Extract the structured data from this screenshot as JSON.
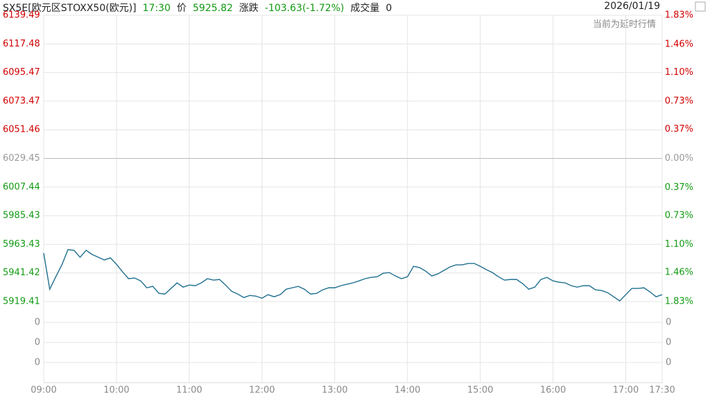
{
  "header": {
    "title": "SX5E[欧元区STOXX50(欧元)]",
    "time": "17:30",
    "price_label": "价",
    "price": "5925.82",
    "change_label": "涨跌",
    "change": "-103.63(-1.72%)",
    "volume_label": "成交量",
    "volume": "0",
    "date": "2026/01/19",
    "note": "当前为延时行情"
  },
  "chart_data": {
    "type": "line",
    "x": [
      "09:00",
      "09:05",
      "09:10",
      "09:15",
      "09:20",
      "09:25",
      "09:30",
      "09:35",
      "09:40",
      "09:45",
      "09:50",
      "09:55",
      "10:00",
      "10:05",
      "10:10",
      "10:15",
      "10:20",
      "10:25",
      "10:30",
      "10:35",
      "10:40",
      "10:45",
      "10:50",
      "10:55",
      "11:00",
      "11:05",
      "11:10",
      "11:15",
      "11:20",
      "11:25",
      "11:30",
      "11:35",
      "11:40",
      "11:45",
      "11:50",
      "11:55",
      "12:00",
      "12:05",
      "12:10",
      "12:15",
      "12:20",
      "12:25",
      "12:30",
      "12:35",
      "12:40",
      "12:45",
      "12:50",
      "12:55",
      "13:00",
      "13:05",
      "13:10",
      "13:15",
      "13:20",
      "13:25",
      "13:30",
      "13:35",
      "13:40",
      "13:45",
      "13:50",
      "13:55",
      "14:00",
      "14:05",
      "14:10",
      "14:15",
      "14:20",
      "14:25",
      "14:30",
      "14:35",
      "14:40",
      "14:45",
      "14:50",
      "14:55",
      "15:00",
      "15:05",
      "15:10",
      "15:15",
      "15:20",
      "15:25",
      "15:30",
      "15:35",
      "15:40",
      "15:45",
      "15:50",
      "15:55",
      "16:00",
      "16:05",
      "16:10",
      "16:15",
      "16:20",
      "16:25",
      "16:30",
      "16:35",
      "16:40",
      "16:45",
      "16:50",
      "16:55",
      "17:00",
      "17:05",
      "17:10",
      "17:15",
      "17:20",
      "17:25",
      "17:30"
    ],
    "series": [
      {
        "color": "#1f6f8f",
        "values": [
          5956.7,
          5928.9,
          5938.5,
          5947.6,
          5959.3,
          5958.8,
          5953.5,
          5958.8,
          5955.6,
          5953.5,
          5951.4,
          5953.0,
          5948.1,
          5942.3,
          5937.0,
          5937.5,
          5935.3,
          5930.0,
          5931.1,
          5925.7,
          5925.2,
          5929.5,
          5933.8,
          5930.5,
          5932.1,
          5931.6,
          5933.8,
          5937.0,
          5935.9,
          5936.4,
          5932.1,
          5927.3,
          5925.2,
          5922.5,
          5924.1,
          5923.6,
          5922.0,
          5924.7,
          5923.1,
          5924.7,
          5928.9,
          5930.0,
          5931.1,
          5928.9,
          5925.2,
          5925.7,
          5928.4,
          5930.0,
          5930.0,
          5931.6,
          5932.7,
          5933.8,
          5935.3,
          5937.0,
          5938.0,
          5938.5,
          5941.2,
          5941.7,
          5939.1,
          5937.0,
          5938.5,
          5946.5,
          5945.5,
          5942.8,
          5939.1,
          5940.7,
          5943.3,
          5946.0,
          5947.6,
          5947.6,
          5948.7,
          5948.7,
          5946.5,
          5943.9,
          5941.7,
          5938.5,
          5935.9,
          5936.4,
          5936.4,
          5933.2,
          5928.9,
          5930.5,
          5936.4,
          5938.0,
          5935.3,
          5934.3,
          5933.8,
          5931.6,
          5930.5,
          5931.6,
          5931.6,
          5928.4,
          5927.9,
          5926.3,
          5923.1,
          5919.9,
          5924.7,
          5929.5,
          5929.5,
          5930.0,
          5926.8,
          5923.1,
          5924.7
        ]
      }
    ],
    "xlim": [
      "09:00",
      "17:30"
    ],
    "xticks": [
      "09:00",
      "10:00",
      "11:00",
      "12:00",
      "13:00",
      "14:00",
      "15:00",
      "16:00",
      "17:00",
      "17:30"
    ],
    "ylim": [
      5919.41,
      6139.49
    ],
    "yticks": [
      6139.49,
      6117.48,
      6095.47,
      6073.47,
      6051.46,
      6029.45,
      6007.44,
      5985.43,
      5963.43,
      5941.42,
      5919.41
    ],
    "y2lim": [
      -1.83,
      1.83
    ],
    "y2ticks": [
      {
        "value": 1.83,
        "label": "1.83%"
      },
      {
        "value": 1.46,
        "label": "1.46%"
      },
      {
        "value": 1.1,
        "label": "1.10%"
      },
      {
        "value": 0.73,
        "label": "0.73%"
      },
      {
        "value": 0.37,
        "label": "0.37%"
      },
      {
        "value": 0,
        "label": "0.00%"
      },
      {
        "value": -0.37,
        "label": "0.37%"
      },
      {
        "value": -0.73,
        "label": "0.73%"
      },
      {
        "value": -1.1,
        "label": "1.10%"
      },
      {
        "value": -1.46,
        "label": "1.46%"
      },
      {
        "value": -1.83,
        "label": "1.83%"
      }
    ],
    "volume_ticks": [
      0,
      0,
      0
    ],
    "up_color": "#d10000",
    "down_color": "#129a12",
    "flat_color": "#999999",
    "grid": true
  }
}
